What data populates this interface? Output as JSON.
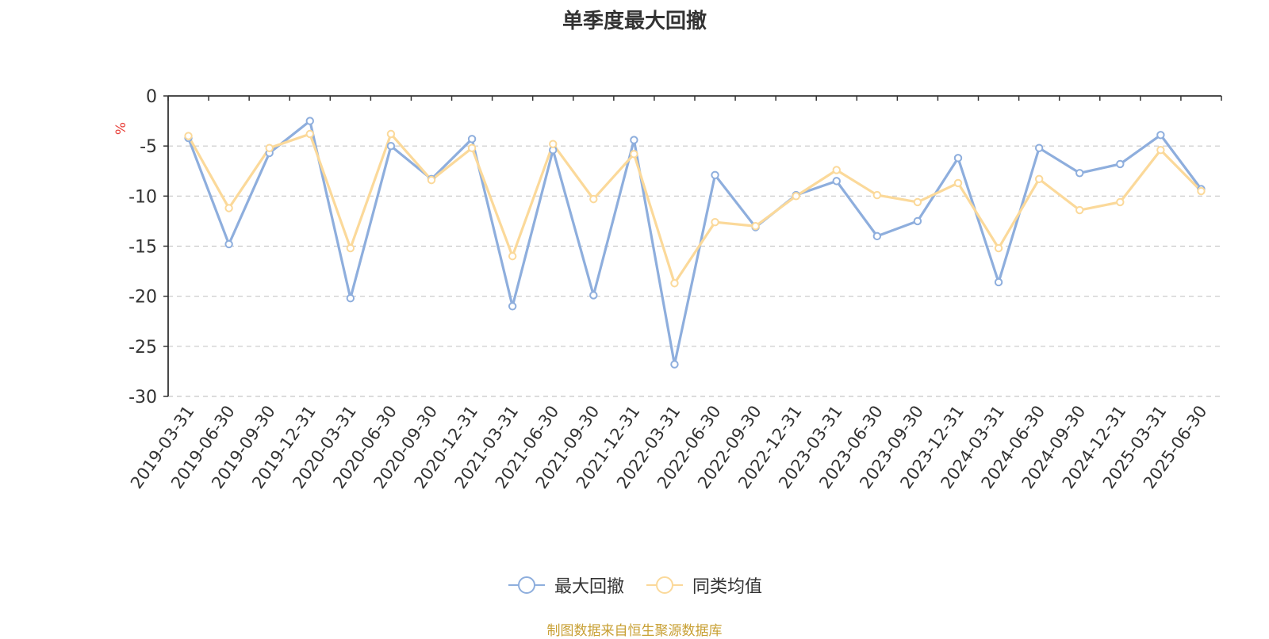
{
  "chart_data": {
    "type": "line",
    "title": "单季度最大回撤",
    "ylabel": "%",
    "ylim": [
      -30,
      0
    ],
    "yticks": [
      0,
      -5,
      -10,
      -15,
      -20,
      -25,
      -30
    ],
    "grid": true,
    "legend_position": "bottom-center",
    "categories": [
      "2019-03-31",
      "2019-06-30",
      "2019-09-30",
      "2019-12-31",
      "2020-03-31",
      "2020-06-30",
      "2020-09-30",
      "2020-12-31",
      "2021-03-31",
      "2021-06-30",
      "2021-09-30",
      "2021-12-31",
      "2022-03-31",
      "2022-06-30",
      "2022-09-30",
      "2022-12-31",
      "2023-03-31",
      "2023-06-30",
      "2023-09-30",
      "2023-12-31",
      "2024-03-31",
      "2024-06-30",
      "2024-09-30",
      "2024-12-31",
      "2025-03-31",
      "2025-06-30"
    ],
    "series": [
      {
        "name": "最大回撤",
        "color": "#8eaedd",
        "values": [
          -4.2,
          -14.8,
          -5.7,
          -2.5,
          -20.2,
          -5.0,
          -8.3,
          -4.3,
          -21.0,
          -5.4,
          -19.9,
          -4.4,
          -26.8,
          -7.9,
          -13.1,
          -9.9,
          -8.5,
          -14.0,
          -12.5,
          -6.2,
          -18.6,
          -5.2,
          -7.7,
          -6.8,
          -3.9,
          -9.3
        ]
      },
      {
        "name": "同类均值",
        "color": "#fbd99a",
        "values": [
          -4.0,
          -11.2,
          -5.2,
          -3.8,
          -15.2,
          -3.8,
          -8.4,
          -5.2,
          -16.0,
          -4.8,
          -10.3,
          -5.8,
          -18.7,
          -12.6,
          -13.0,
          -10.0,
          -7.4,
          -9.9,
          -10.6,
          -8.7,
          -15.2,
          -8.3,
          -11.4,
          -10.6,
          -5.4,
          -9.5
        ]
      }
    ]
  },
  "source_note": "制图数据来自恒生聚源数据库"
}
